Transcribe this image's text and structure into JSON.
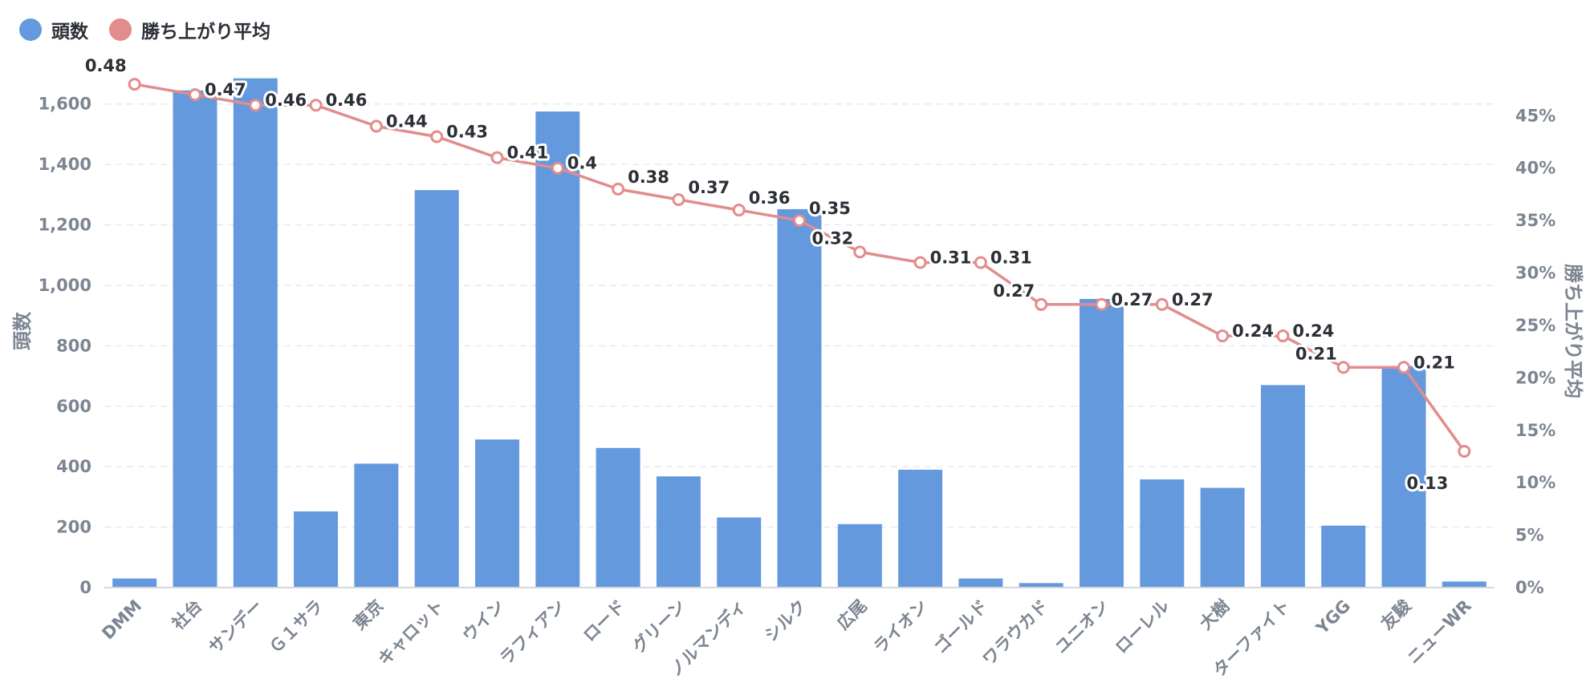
{
  "legend": {
    "items": [
      {
        "label": "頭数",
        "color": "#6499dd"
      },
      {
        "label": "勝ち上がり平均",
        "color": "#e28c8c"
      }
    ]
  },
  "chart_data": {
    "type": "bar",
    "categories": [
      "DMM",
      "社台",
      "サンデー",
      "Ｇ１サラ",
      "東京",
      "キャロット",
      "ウイン",
      "ラフィアン",
      "ロード",
      "グリーン",
      "ノルマンディ",
      "シルク",
      "広尾",
      "ライオン",
      "ゴールド",
      "ワラウカド",
      "ユニオン",
      "ローレル",
      "大樹",
      "ターファイト",
      "YGG",
      "友駿",
      "ニューWR"
    ],
    "series": [
      {
        "name": "頭数",
        "type": "bar",
        "axis": "left",
        "values": [
          30,
          1645,
          1685,
          252,
          410,
          1315,
          490,
          1575,
          462,
          368,
          232,
          1252,
          210,
          390,
          30,
          15,
          955,
          358,
          330,
          670,
          205,
          733,
          20
        ]
      },
      {
        "name": "勝ち上がり平均",
        "type": "line",
        "axis": "right",
        "values": [
          0.48,
          0.47,
          0.46,
          0.46,
          0.44,
          0.43,
          0.41,
          0.4,
          0.38,
          0.37,
          0.36,
          0.35,
          0.32,
          0.31,
          0.31,
          0.27,
          0.27,
          0.27,
          0.24,
          0.24,
          0.21,
          0.21,
          0.13
        ],
        "labels": [
          "0.48",
          "0.47",
          "0.46",
          "0.46",
          "0.44",
          "0.43",
          "0.41",
          "0.4",
          "0.38",
          "0.37",
          "0.36",
          "0.35",
          "0.32",
          "0.31",
          "0.31",
          "0.27",
          "0.27",
          "0.27",
          "0.24",
          "0.24",
          "0.21",
          "0.21",
          "0.13"
        ]
      }
    ],
    "y_left": {
      "label": "頭数",
      "min": 0,
      "max": 1700,
      "ticks": [
        0,
        200,
        400,
        600,
        800,
        1000,
        1200,
        1400,
        1600
      ],
      "tick_labels": [
        "0",
        "200",
        "400",
        "600",
        "800",
        "1,000",
        "1,200",
        "1,400",
        "1,600"
      ]
    },
    "y_right": {
      "label": "勝ち上がり平均",
      "min": 0,
      "max": 0.49,
      "ticks": [
        0,
        0.05,
        0.1,
        0.15,
        0.2,
        0.25,
        0.3,
        0.35,
        0.4,
        0.45
      ],
      "tick_labels": [
        "0%",
        "5%",
        "10%",
        "15%",
        "20%",
        "25%",
        "30%",
        "35%",
        "40%",
        "45%"
      ]
    },
    "grid": true,
    "legend_position": "top-left"
  }
}
